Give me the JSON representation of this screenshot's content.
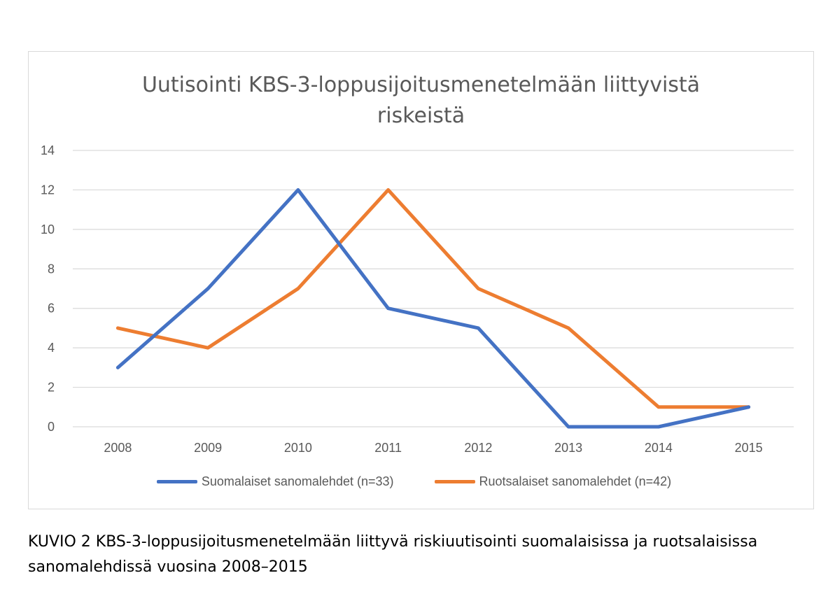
{
  "chart_data": {
    "type": "line",
    "title_lines": [
      "Uutisointi KBS-3-loppusijoitusmenetelmään liittyvistä",
      "riskeistä"
    ],
    "categories": [
      "2008",
      "2009",
      "2010",
      "2011",
      "2012",
      "2013",
      "2014",
      "2015"
    ],
    "series": [
      {
        "name": "Suomalaiset sanomalehdet (n=33)",
        "color": "#4472c4",
        "values": [
          3,
          7,
          12,
          6,
          5,
          0,
          0,
          1
        ]
      },
      {
        "name": "Ruotsalaiset sanomalehdet (n=42)",
        "color": "#ed7d31",
        "values": [
          5,
          4,
          7,
          12,
          7,
          5,
          1,
          1
        ]
      }
    ],
    "yticks": [
      0,
      2,
      4,
      6,
      8,
      10,
      12,
      14
    ],
    "ylim": [
      0,
      14
    ],
    "grid": true,
    "legend_position": "bottom",
    "gridline_color": "#d9d9d9"
  },
  "caption": "KUVIO 2 KBS-3-loppusijoitusmenetelmään liittyvä riskiuutisointi suomalaisissa ja ruotsalaisissa sanomalehdissä vuosina 2008–2015"
}
